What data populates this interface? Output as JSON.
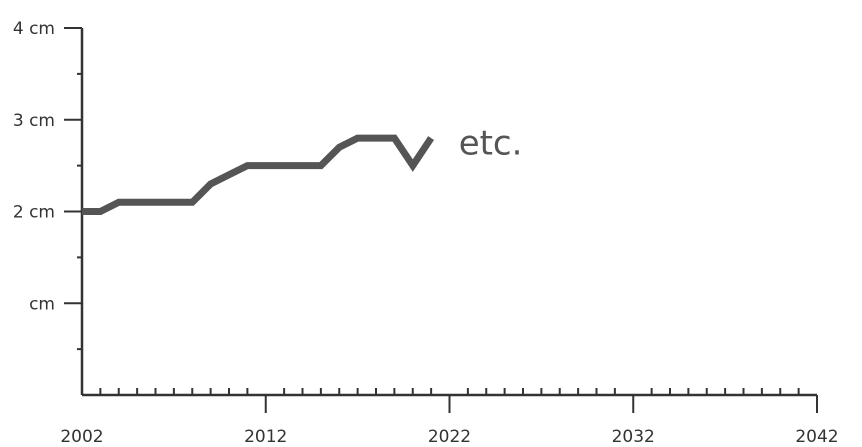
{
  "chart_data": {
    "type": "line",
    "title": "",
    "xlabel": "",
    "ylabel": "",
    "xlim": [
      2002,
      2042
    ],
    "ylim": [
      0,
      4
    ],
    "grid": false,
    "x_ticks": [
      2002,
      2012,
      2022,
      2032,
      2042
    ],
    "x_tick_labels": [
      "2002",
      "2012",
      "2022",
      "2032",
      "2042"
    ],
    "y_ticks": [
      1,
      2,
      3,
      4
    ],
    "y_tick_labels": [
      "cm",
      "2 cm",
      "3 cm",
      "4 cm"
    ],
    "series": [
      {
        "x": [
          2002,
          2003,
          2004,
          2005,
          2006,
          2007,
          2008,
          2009,
          2010,
          2011,
          2012,
          2013,
          2014,
          2015,
          2016,
          2017,
          2018,
          2019,
          2020,
          2021
        ],
        "y": [
          2.0,
          2.0,
          2.1,
          2.1,
          2.1,
          2.1,
          2.1,
          2.3,
          2.4,
          2.5,
          2.5,
          2.5,
          2.5,
          2.5,
          2.7,
          2.8,
          2.8,
          2.8,
          2.5,
          2.8
        ]
      }
    ],
    "annotation": {
      "text": "etc.",
      "x": 2022.5,
      "y": 2.75
    },
    "colors": {
      "line": "#555555",
      "axis": "#333333",
      "text": "#333333"
    }
  }
}
